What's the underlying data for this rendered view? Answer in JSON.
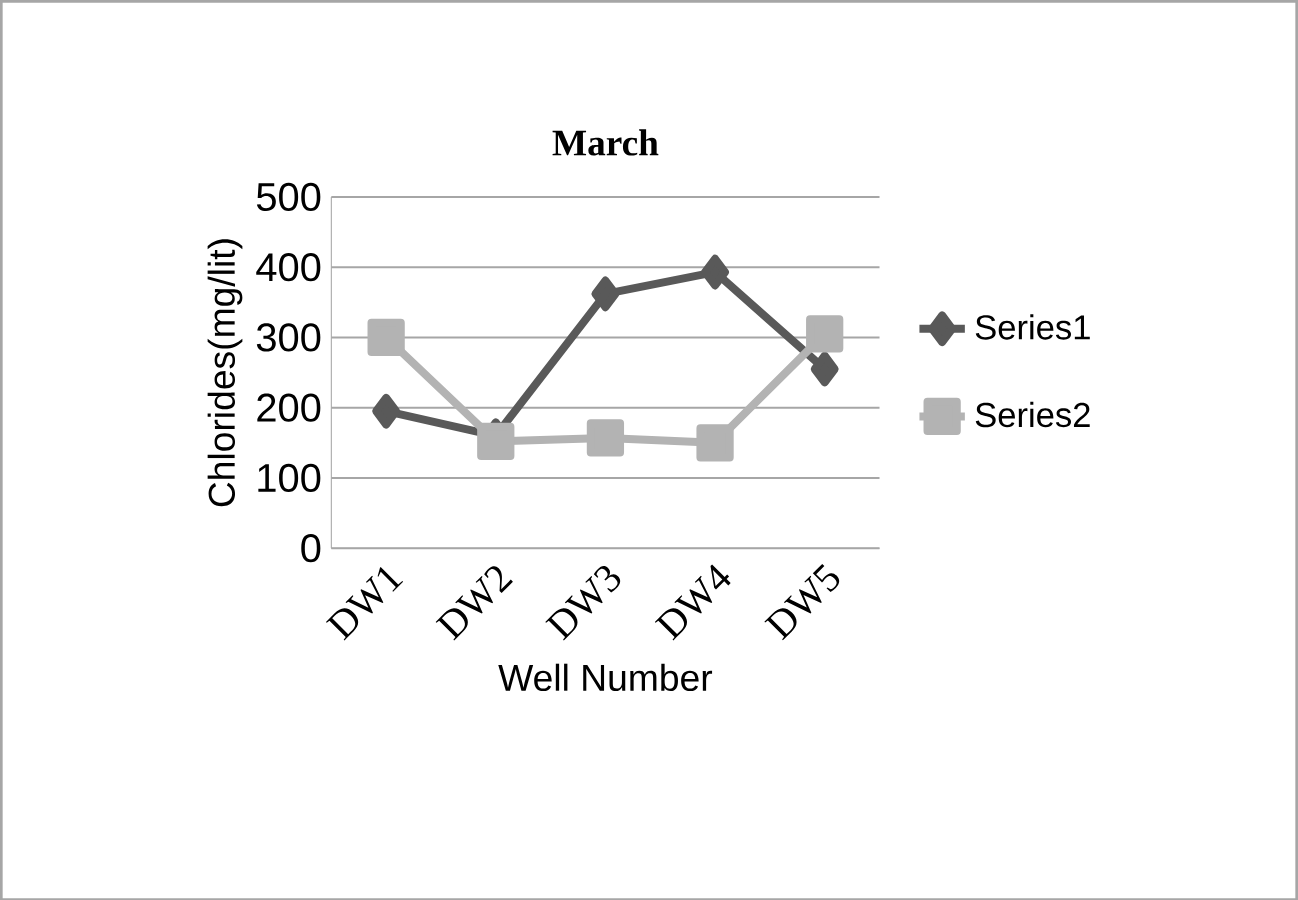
{
  "chart_data": {
    "type": "line",
    "title": "March",
    "xlabel": "Well Number",
    "ylabel": "Chlorides(mg/lit)",
    "categories": [
      "DW1",
      "DW2",
      "DW3",
      "DW4",
      "DW5"
    ],
    "series": [
      {
        "name": "Series1",
        "color": "#595959",
        "marker": "diamond",
        "values": [
          195,
          160,
          362,
          393,
          255
        ]
      },
      {
        "name": "Series2",
        "color": "#b3b3b3",
        "marker": "square",
        "values": [
          300,
          152,
          157,
          150,
          305
        ]
      }
    ],
    "ylim": [
      0,
      500
    ],
    "yticks": [
      0,
      100,
      200,
      300,
      400,
      500
    ],
    "grid": "y",
    "legend": "right"
  }
}
